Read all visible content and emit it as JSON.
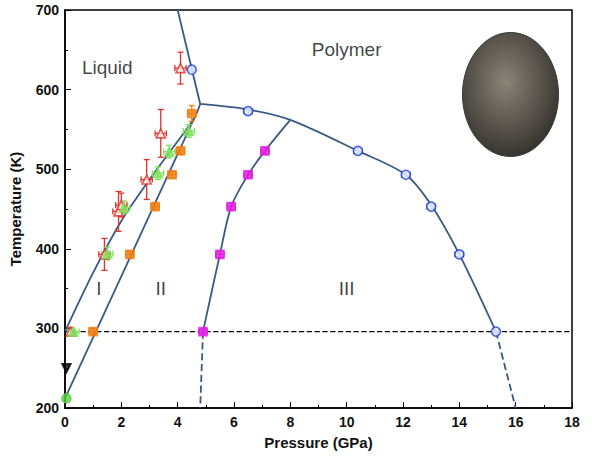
{
  "chart_data": {
    "type": "scatter",
    "x_label": "Pressure (GPa)",
    "y_label": "Temperature (K)",
    "xlim": [
      0,
      18
    ],
    "ylim": [
      200,
      700
    ],
    "xticks": [
      0,
      2,
      4,
      6,
      8,
      10,
      12,
      14,
      16,
      18
    ],
    "yticks": [
      200,
      300,
      400,
      500,
      600,
      700
    ],
    "grid": false,
    "series": [
      {
        "type": "line",
        "color": "#3a5a85",
        "line_style": "solid",
        "x": [
          0,
          1,
          2,
          3,
          4,
          4.6,
          4.8
        ],
        "values": [
          296,
          370,
          435,
          487,
          535,
          565,
          582
        ]
      },
      {
        "type": "line",
        "color": "#3a5a85",
        "line_style": "solid",
        "x": [
          0,
          4.6
        ],
        "values": [
          212,
          565
        ]
      },
      {
        "type": "line",
        "color": "#3a5a85",
        "line_style": "solid",
        "x": [
          4.8,
          4.0
        ],
        "values": [
          582,
          700
        ]
      },
      {
        "type": "line",
        "color": "#3a5a85",
        "line_style": "solid",
        "x": [
          4.8,
          6.5,
          8,
          10.4,
          12.1,
          13,
          14,
          15.3
        ],
        "values": [
          582,
          575,
          562,
          523,
          493,
          455,
          393,
          296
        ]
      },
      {
        "type": "line",
        "color": "#3a5a85",
        "line_style": "dashed",
        "x": [
          15.3,
          16.0
        ],
        "values": [
          296,
          200
        ]
      },
      {
        "type": "line",
        "color": "#3a5a85",
        "line_style": "solid",
        "x": [
          4.9,
          5.5,
          5.9,
          6.5,
          7.1,
          8
        ],
        "values": [
          296,
          393,
          453,
          493,
          523,
          562
        ]
      },
      {
        "type": "line",
        "color": "#3a5a85",
        "line_style": "dashed",
        "x": [
          4.9,
          4.8
        ],
        "values": [
          296,
          200
        ]
      },
      {
        "type": "line",
        "color": "#000000",
        "line_style": "dashed",
        "x": [
          0,
          18
        ],
        "values": [
          296,
          296
        ]
      },
      {
        "type": "scatter",
        "color": "#e0302a",
        "marker": "triangle-open",
        "x": [
          0.2,
          1.4,
          1.9,
          2.0,
          2.9,
          3.4,
          4.1
        ],
        "values": [
          296,
          393,
          447,
          455,
          487,
          545,
          627
        ],
        "xerr": [
          0.1,
          0.2,
          0.2,
          0.2,
          0.2,
          0.2,
          0.2
        ],
        "yerr": [
          5,
          20,
          25,
          15,
          25,
          30,
          20
        ]
      },
      {
        "type": "scatter",
        "color": "#7fe05a",
        "marker": "triangle",
        "x": [
          0.3,
          1.5,
          2.1,
          3.3,
          3.7,
          4.4
        ],
        "values": [
          296,
          394,
          452,
          495,
          522,
          548
        ],
        "xerr": [
          0.2,
          0.2,
          0.2,
          0.2,
          0.2,
          0.2
        ],
        "yerr": [
          3,
          8,
          8,
          8,
          8,
          8
        ]
      },
      {
        "type": "scatter",
        "color": "#f07f14",
        "marker": "square",
        "x": [
          1.0,
          2.3,
          3.2,
          3.8,
          4.1,
          4.5
        ],
        "values": [
          296,
          393,
          453,
          493,
          523,
          570
        ],
        "xerr": [
          0.15,
          0.15,
          0.15,
          0.15,
          0.15,
          0.15
        ],
        "yerr": [
          4,
          4,
          4,
          4,
          4,
          10
        ]
      },
      {
        "type": "scatter",
        "color": "#e020e0",
        "marker": "square",
        "x": [
          4.9,
          5.5,
          5.9,
          6.5,
          7.1
        ],
        "values": [
          296,
          393,
          453,
          493,
          523
        ],
        "xerr": [
          0.15,
          0.15,
          0.15,
          0.15,
          0.15
        ],
        "yerr": [
          3,
          4,
          4,
          4,
          4
        ]
      },
      {
        "type": "scatter",
        "color": "#1a3ee0",
        "marker": "circle-half",
        "x": [
          15.3,
          14.0,
          13.0,
          12.1,
          10.4,
          6.5,
          4.5
        ],
        "values": [
          296,
          393,
          453,
          493,
          523,
          573,
          625
        ],
        "xerr": [
          0.1,
          0.15,
          0.15,
          0.15,
          0.15,
          0.15,
          0.1
        ],
        "yerr": [
          2,
          3,
          3,
          3,
          3,
          4,
          2
        ]
      },
      {
        "type": "scatter",
        "color": "#000000",
        "marker": "triangle-down",
        "x": [
          0.05
        ],
        "values": [
          250
        ]
      },
      {
        "type": "scatter",
        "color": "#5ad040",
        "marker": "circle",
        "x": [
          0.05
        ],
        "values": [
          212
        ]
      }
    ],
    "annotations": [
      {
        "text": "Liquid",
        "x": 1.5,
        "y": 628
      },
      {
        "text": "Polymer",
        "x": 10,
        "y": 650
      },
      {
        "text": "I",
        "x": 1.2,
        "y": 350
      },
      {
        "text": "II",
        "x": 3.4,
        "y": 350
      },
      {
        "text": "III",
        "x": 10,
        "y": 350
      }
    ]
  }
}
